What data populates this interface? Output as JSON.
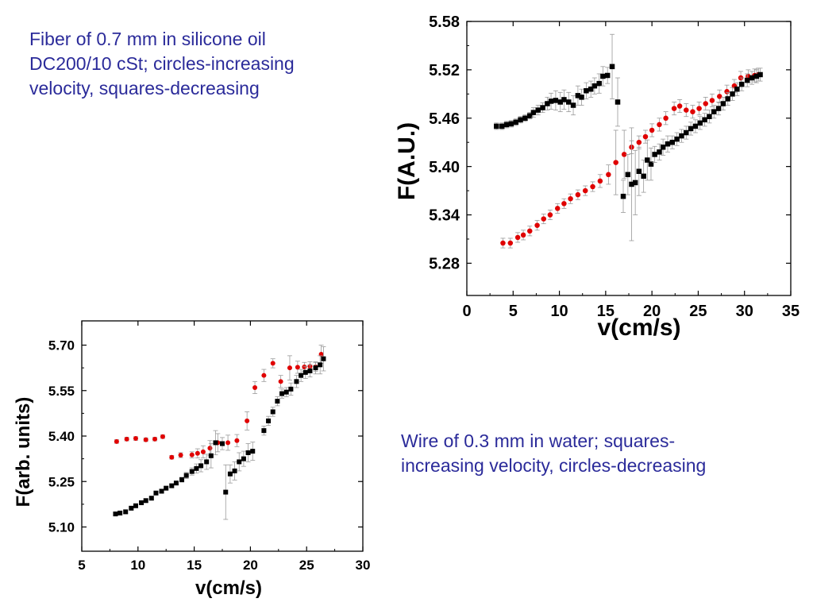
{
  "captions": {
    "top": "Fiber of 0.7 mm in silicone oil\nDC200/10 cSt; circles-increasing\nvelocity, squares-decreasing",
    "bottom": "Wire of 0.3 mm in water; squares-\nincreasing velocity, circles-decreasing"
  },
  "colors": {
    "circles": "#e00000",
    "squares": "#000000",
    "errorbar": "#999999",
    "axis": "#000000"
  },
  "chart_data": [
    {
      "type": "scatter",
      "title": "",
      "xlabel": "v(cm/s)",
      "ylabel": "F(A.U.)",
      "xlim": [
        0,
        35
      ],
      "ylim": [
        5.24,
        5.58
      ],
      "xticks": [
        0,
        5,
        10,
        15,
        20,
        25,
        30,
        35
      ],
      "xtick_labels": [
        "0",
        "5",
        "10",
        "15",
        "20",
        "25",
        "30",
        "35"
      ],
      "yticks": [
        5.28,
        5.34,
        5.4,
        5.46,
        5.52,
        5.58
      ],
      "ytick_labels": [
        "5.28",
        "5.34",
        "5.40",
        "5.46",
        "5.52",
        "5.58"
      ],
      "grid": false,
      "series": [
        {
          "marker": "circle",
          "x": [
            3.9,
            4.7,
            5.5,
            6.1,
            6.8,
            7.6,
            8.3,
            9.0,
            9.8,
            10.5,
            11.2,
            12.0,
            12.8,
            13.6,
            14.4,
            15.3,
            16.1,
            17.0,
            17.8,
            18.6,
            19.3,
            20.0,
            20.8,
            21.5,
            22.4,
            23.0,
            23.7,
            24.4,
            25.1,
            25.8,
            26.5,
            27.3,
            28.1,
            28.9,
            29.6,
            30.4,
            31.1,
            31.5
          ],
          "y": [
            5.305,
            5.305,
            5.312,
            5.315,
            5.32,
            5.327,
            5.335,
            5.34,
            5.348,
            5.354,
            5.36,
            5.365,
            5.37,
            5.375,
            5.382,
            5.39,
            5.405,
            5.415,
            5.424,
            5.43,
            5.437,
            5.445,
            5.452,
            5.46,
            5.472,
            5.475,
            5.47,
            5.468,
            5.472,
            5.478,
            5.482,
            5.487,
            5.493,
            5.5,
            5.51,
            5.512,
            5.513,
            5.514
          ],
          "err": [
            0.006,
            0.006,
            0.006,
            0.006,
            0.006,
            0.006,
            0.006,
            0.006,
            0.006,
            0.006,
            0.006,
            0.006,
            0.006,
            0.006,
            0.008,
            0.012,
            0.04,
            0.03,
            0.008,
            0.008,
            0.008,
            0.008,
            0.008,
            0.008,
            0.008,
            0.008,
            0.008,
            0.008,
            0.008,
            0.008,
            0.008,
            0.008,
            0.008,
            0.008,
            0.008,
            0.008,
            0.008,
            0.008
          ]
        },
        {
          "marker": "square",
          "x": [
            3.2,
            3.8,
            4.3,
            4.8,
            5.3,
            5.8,
            6.3,
            6.8,
            7.2,
            7.7,
            8.2,
            8.7,
            9.1,
            9.6,
            10.1,
            10.5,
            11.0,
            11.5,
            12.0,
            12.4,
            12.9,
            13.4,
            13.8,
            14.3,
            14.7,
            15.2,
            15.7,
            16.3,
            16.9,
            17.4,
            17.8,
            18.2,
            18.6,
            19.1,
            19.5,
            19.9,
            20.3,
            20.8,
            21.2,
            21.7,
            22.2,
            22.7,
            23.2,
            23.7,
            24.2,
            24.7,
            25.2,
            25.7,
            26.2,
            26.7,
            27.2,
            27.7,
            28.2,
            28.7,
            29.2,
            29.7,
            30.3,
            30.8,
            31.3,
            31.7
          ],
          "y": [
            5.45,
            5.45,
            5.452,
            5.453,
            5.455,
            5.458,
            5.46,
            5.463,
            5.467,
            5.47,
            5.473,
            5.478,
            5.481,
            5.482,
            5.48,
            5.483,
            5.48,
            5.476,
            5.488,
            5.486,
            5.494,
            5.496,
            5.5,
            5.503,
            5.512,
            5.513,
            5.524,
            5.48,
            5.363,
            5.39,
            5.378,
            5.38,
            5.394,
            5.388,
            5.408,
            5.403,
            5.415,
            5.418,
            5.424,
            5.428,
            5.43,
            5.434,
            5.438,
            5.442,
            5.447,
            5.45,
            5.454,
            5.458,
            5.462,
            5.468,
            5.472,
            5.478,
            5.484,
            5.49,
            5.496,
            5.502,
            5.507,
            5.51,
            5.512,
            5.514
          ],
          "err": [
            0.004,
            0.004,
            0.004,
            0.004,
            0.004,
            0.004,
            0.004,
            0.004,
            0.006,
            0.006,
            0.006,
            0.008,
            0.01,
            0.012,
            0.012,
            0.012,
            0.012,
            0.012,
            0.012,
            0.01,
            0.01,
            0.01,
            0.01,
            0.012,
            0.012,
            0.01,
            0.04,
            0.03,
            0.02,
            0.025,
            0.07,
            0.04,
            0.03,
            0.02,
            0.025,
            0.02,
            0.01,
            0.01,
            0.01,
            0.01,
            0.008,
            0.008,
            0.008,
            0.008,
            0.008,
            0.008,
            0.008,
            0.008,
            0.008,
            0.008,
            0.008,
            0.008,
            0.008,
            0.008,
            0.008,
            0.008,
            0.008,
            0.008,
            0.008,
            0.008
          ]
        }
      ]
    },
    {
      "type": "scatter",
      "title": "",
      "xlabel": "v(cm/s)",
      "ylabel": "F(arb. units)",
      "xlim": [
        5,
        30
      ],
      "ylim": [
        5.02,
        5.78
      ],
      "xticks": [
        5,
        10,
        15,
        20,
        25,
        30
      ],
      "xtick_labels": [
        "5",
        "10",
        "15",
        "20",
        "25",
        "30"
      ],
      "yticks": [
        5.1,
        5.25,
        5.4,
        5.55,
        5.7
      ],
      "ytick_labels": [
        "5.10",
        "5.25",
        "5.40",
        "5.55",
        "5.70"
      ],
      "grid": false,
      "series": [
        {
          "marker": "circle",
          "x": [
            8.1,
            9.0,
            9.8,
            10.7,
            11.5,
            12.2,
            13.0,
            13.8,
            14.8,
            15.3,
            15.8,
            16.4,
            17.1,
            18.0,
            18.8,
            19.7,
            20.4,
            21.2,
            22.0,
            22.7,
            23.5,
            24.2,
            24.8,
            25.3,
            25.8,
            26.3
          ],
          "y": [
            5.382,
            5.39,
            5.392,
            5.388,
            5.39,
            5.398,
            5.33,
            5.337,
            5.338,
            5.343,
            5.348,
            5.36,
            5.378,
            5.378,
            5.385,
            5.45,
            5.56,
            5.6,
            5.64,
            5.58,
            5.625,
            5.627,
            5.628,
            5.63,
            5.628,
            5.67
          ],
          "err": [
            0.006,
            0.006,
            0.006,
            0.006,
            0.006,
            0.006,
            0.006,
            0.008,
            0.01,
            0.015,
            0.02,
            0.025,
            0.03,
            0.025,
            0.02,
            0.03,
            0.02,
            0.02,
            0.015,
            0.02,
            0.04,
            0.02,
            0.015,
            0.015,
            0.015,
            0.03
          ]
        },
        {
          "marker": "square",
          "x": [
            8.0,
            8.4,
            8.9,
            9.4,
            9.8,
            10.3,
            10.7,
            11.2,
            11.6,
            12.1,
            12.5,
            13.0,
            13.4,
            13.9,
            14.3,
            14.8,
            15.2,
            15.6,
            16.1,
            16.5,
            16.9,
            17.5,
            17.8,
            18.2,
            18.6,
            19.0,
            19.4,
            19.8,
            20.2,
            21.2,
            21.6,
            22.0,
            22.4,
            22.8,
            23.2,
            23.6,
            24.1,
            24.5,
            24.9,
            25.3,
            25.8,
            26.2,
            26.5
          ],
          "y": [
            5.143,
            5.146,
            5.15,
            5.162,
            5.17,
            5.18,
            5.187,
            5.195,
            5.212,
            5.218,
            5.228,
            5.236,
            5.245,
            5.256,
            5.27,
            5.283,
            5.293,
            5.302,
            5.315,
            5.335,
            5.378,
            5.375,
            5.215,
            5.275,
            5.285,
            5.315,
            5.325,
            5.345,
            5.35,
            5.418,
            5.45,
            5.48,
            5.515,
            5.54,
            5.545,
            5.555,
            5.58,
            5.6,
            5.61,
            5.615,
            5.625,
            5.635,
            5.655
          ],
          "err": [
            0.006,
            0.006,
            0.006,
            0.006,
            0.006,
            0.006,
            0.006,
            0.006,
            0.006,
            0.006,
            0.006,
            0.006,
            0.006,
            0.008,
            0.01,
            0.012,
            0.015,
            0.02,
            0.025,
            0.04,
            0.04,
            0.02,
            0.09,
            0.03,
            0.03,
            0.03,
            0.025,
            0.03,
            0.03,
            0.015,
            0.015,
            0.015,
            0.015,
            0.015,
            0.015,
            0.02,
            0.02,
            0.02,
            0.02,
            0.02,
            0.02,
            0.03,
            0.04
          ]
        }
      ]
    }
  ]
}
